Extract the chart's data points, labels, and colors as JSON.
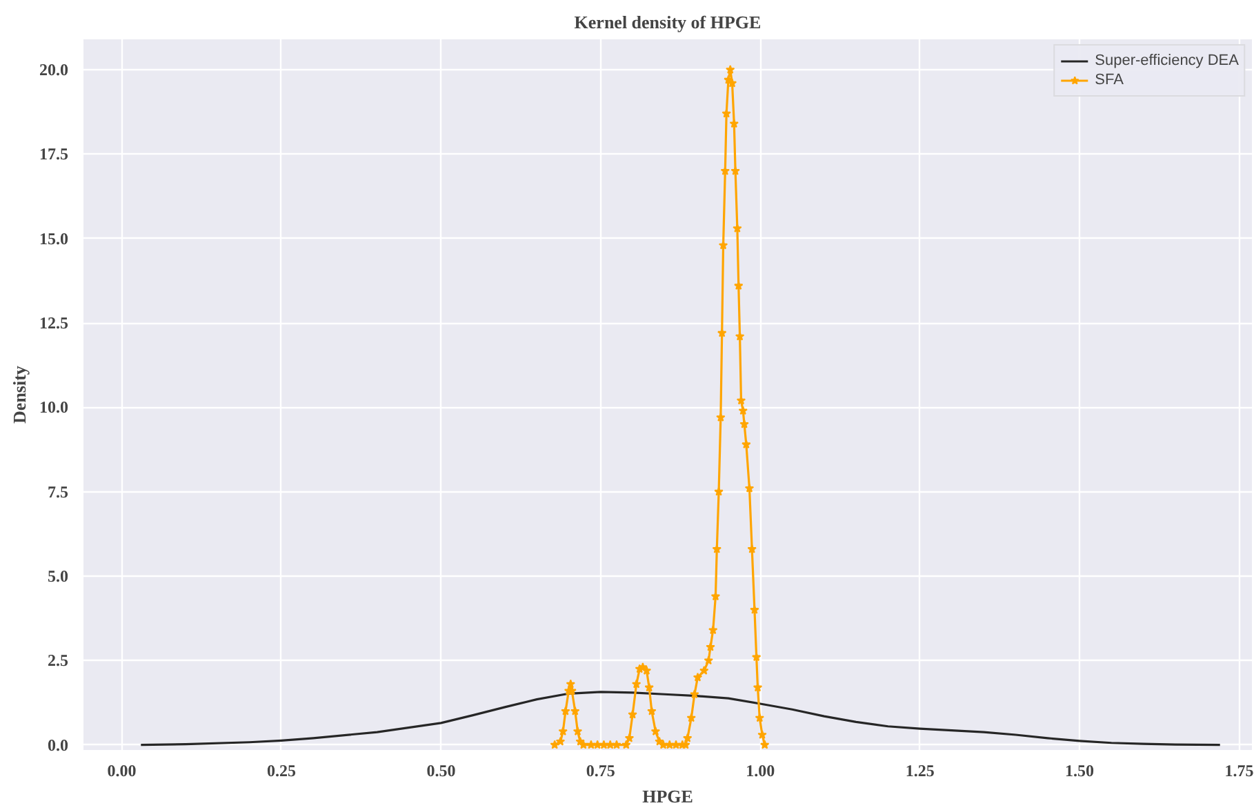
{
  "chart_data": {
    "type": "line",
    "title": "Kernel density of HPGE",
    "xlabel": "HPGE",
    "ylabel": "Density",
    "xlim": [
      -0.06,
      1.77
    ],
    "ylim": [
      -0.15,
      20.9
    ],
    "xticks": [
      {
        "value": 0,
        "label": "0.00"
      },
      0.25,
      {
        "value": 0.5,
        "label": "0.50"
      },
      0.75,
      {
        "value": 1,
        "label": "1.00"
      },
      1.25,
      {
        "value": 1.5,
        "label": "1.50"
      },
      1.75
    ],
    "yticks": [
      {
        "value": 0,
        "label": "0.0"
      },
      2.5,
      {
        "value": 5,
        "label": "5.0"
      },
      7.5,
      {
        "value": 10,
        "label": "10.0"
      },
      12.5,
      {
        "value": 15,
        "label": "15.0"
      },
      17.5,
      {
        "value": 20,
        "label": "20.0"
      }
    ],
    "grid": true,
    "legend": "top right",
    "series": [
      {
        "name": "Super-efficiency DEA",
        "color": "#262626",
        "marker": "none",
        "x": [
          0.03,
          0.1,
          0.2,
          0.25,
          0.3,
          0.4,
          0.5,
          0.55,
          0.6,
          0.65,
          0.7,
          0.75,
          0.8,
          0.85,
          0.9,
          0.95,
          1.0,
          1.05,
          1.1,
          1.15,
          1.2,
          1.25,
          1.3,
          1.35,
          1.4,
          1.45,
          1.5,
          1.55,
          1.6,
          1.65,
          1.72
        ],
        "values": [
          0.0,
          0.02,
          0.08,
          0.13,
          0.2,
          0.38,
          0.65,
          0.88,
          1.12,
          1.35,
          1.52,
          1.57,
          1.55,
          1.5,
          1.45,
          1.38,
          1.22,
          1.05,
          0.85,
          0.68,
          0.55,
          0.48,
          0.43,
          0.38,
          0.3,
          0.2,
          0.12,
          0.06,
          0.03,
          0.01,
          0.0
        ]
      },
      {
        "name": "SFA",
        "color": "#ffa500",
        "marker": "star",
        "x": [
          0.678,
          0.687,
          0.691,
          0.695,
          0.7,
          0.703,
          0.705,
          0.71,
          0.714,
          0.718,
          0.723,
          0.735,
          0.745,
          0.755,
          0.765,
          0.775,
          0.79,
          0.795,
          0.8,
          0.806,
          0.811,
          0.816,
          0.822,
          0.826,
          0.83,
          0.836,
          0.842,
          0.848,
          0.858,
          0.868,
          0.878,
          0.883,
          0.886,
          0.892,
          0.897,
          0.902,
          0.912,
          0.919,
          0.922,
          0.926,
          0.93,
          0.932,
          0.935,
          0.938,
          0.94,
          0.942,
          0.945,
          0.947,
          0.95,
          0.953,
          0.956,
          0.959,
          0.961,
          0.964,
          0.966,
          0.968,
          0.97,
          0.973,
          0.975,
          0.978,
          0.983,
          0.987,
          0.991,
          0.994,
          0.996,
          0.999,
          1.003,
          1.007
        ],
        "values": [
          0.0,
          0.1,
          0.4,
          1.0,
          1.6,
          1.8,
          1.6,
          1.0,
          0.4,
          0.1,
          0.0,
          0.0,
          0.0,
          0.0,
          0.0,
          0.0,
          0.0,
          0.2,
          0.9,
          1.8,
          2.25,
          2.3,
          2.2,
          1.7,
          1.0,
          0.4,
          0.1,
          0.0,
          0.0,
          0.0,
          0.0,
          0.0,
          0.2,
          0.8,
          1.5,
          2.0,
          2.2,
          2.5,
          2.9,
          3.4,
          4.4,
          5.8,
          7.5,
          9.7,
          12.2,
          14.8,
          17.0,
          18.7,
          19.7,
          20.0,
          19.6,
          18.4,
          17.0,
          15.3,
          13.6,
          12.1,
          10.2,
          9.9,
          9.5,
          8.9,
          7.6,
          5.8,
          4.0,
          2.6,
          1.7,
          0.8,
          0.3,
          0.0
        ]
      }
    ]
  }
}
